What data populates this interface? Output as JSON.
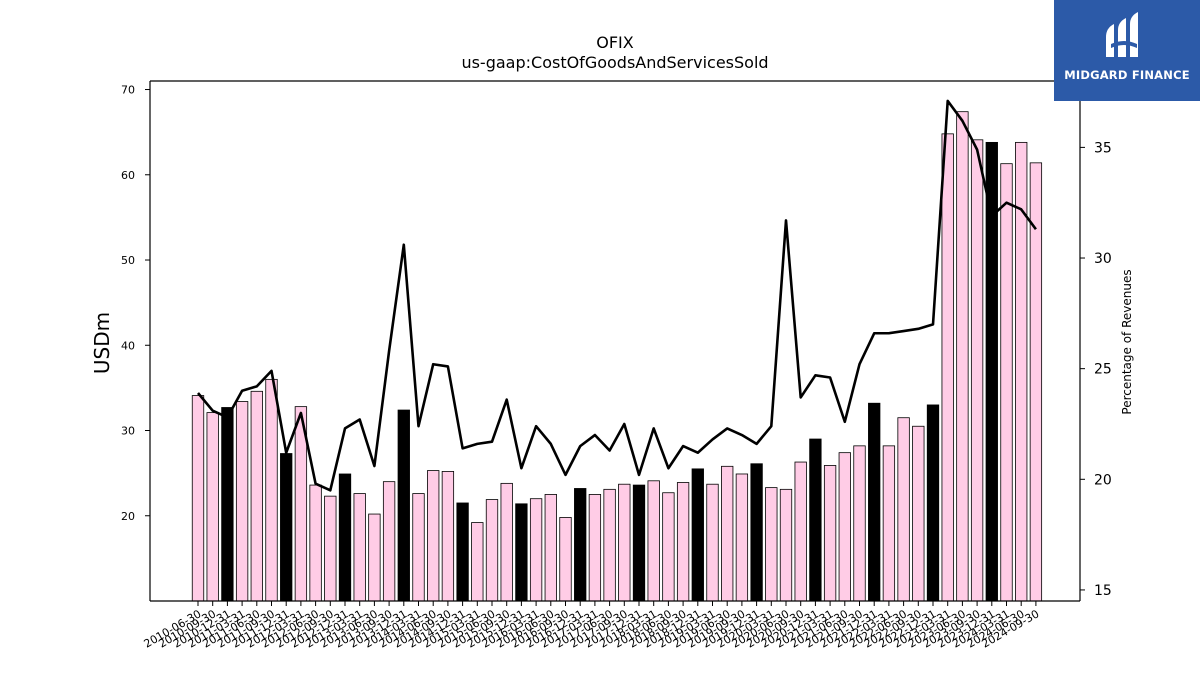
{
  "chart_data": {
    "type": "bar",
    "title": "OFIX",
    "subtitle": "us-gaap:CostOfGoodsAndServicesSold",
    "ylabel": "USDm",
    "ylabel_right": "Percentage of Revenues",
    "ylim": [
      10,
      71
    ],
    "ylim_right": [
      14.5,
      38
    ],
    "yticks": [
      20,
      30,
      40,
      50,
      60,
      70
    ],
    "yticks_right": [
      15,
      20,
      25,
      30,
      35
    ],
    "grid": false,
    "colors": {
      "bar": "#ffcce6",
      "bar_highlight": "#000000",
      "line": "#000000",
      "edge": "#000000"
    },
    "categories": [
      "2010-06-30",
      "2010-09-30",
      "2010-12-31",
      "2011-03-31",
      "2011-06-30",
      "2011-09-30",
      "2011-12-31",
      "2012-03-31",
      "2012-06-30",
      "2012-09-30",
      "2012-12-31",
      "2013-03-31",
      "2013-06-30",
      "2013-09-30",
      "2013-12-31",
      "2014-03-31",
      "2014-06-30",
      "2014-09-30",
      "2014-12-31",
      "2015-03-31",
      "2015-06-30",
      "2015-09-30",
      "2015-12-31",
      "2016-03-31",
      "2016-06-30",
      "2016-09-30",
      "2016-12-31",
      "2017-03-31",
      "2017-06-30",
      "2017-09-30",
      "2017-12-31",
      "2018-03-31",
      "2018-06-30",
      "2018-09-30",
      "2018-12-31",
      "2019-03-31",
      "2019-06-30",
      "2019-09-30",
      "2019-12-31",
      "2020-03-31",
      "2020-06-30",
      "2020-09-30",
      "2020-12-31",
      "2021-03-31",
      "2021-06-30",
      "2021-09-30",
      "2021-12-31",
      "2022-03-31",
      "2022-06-30",
      "2022-09-30",
      "2022-12-31",
      "2023-03-31",
      "2023-06-30",
      "2023-09-30",
      "2023-12-31",
      "2024-03-31",
      "2024-06-30",
      "2024-09-30"
    ],
    "series": [
      {
        "type": "bar",
        "axis": "left",
        "values": [
          34.1,
          32.1,
          32.7,
          33.4,
          34.6,
          36.0,
          27.3,
          32.8,
          23.6,
          22.3,
          24.9,
          22.6,
          20.2,
          24.0,
          32.4,
          22.6,
          25.3,
          25.2,
          21.5,
          19.2,
          21.9,
          23.8,
          21.4,
          22.0,
          22.5,
          19.8,
          23.2,
          22.5,
          23.1,
          23.7,
          23.6,
          24.1,
          22.7,
          23.9,
          25.5,
          23.7,
          25.8,
          24.9,
          26.1,
          23.3,
          23.1,
          26.3,
          29.0,
          25.9,
          27.4,
          28.2,
          33.2,
          28.2,
          31.5,
          30.5,
          33.0,
          64.8,
          67.4,
          64.1,
          63.8,
          61.3,
          63.8,
          61.4
        ],
        "highlight": [
          false,
          false,
          true,
          false,
          false,
          false,
          true,
          false,
          false,
          false,
          true,
          false,
          false,
          false,
          true,
          false,
          false,
          false,
          true,
          false,
          false,
          false,
          true,
          false,
          false,
          false,
          true,
          false,
          false,
          false,
          true,
          false,
          false,
          false,
          true,
          false,
          false,
          false,
          true,
          false,
          false,
          false,
          true,
          false,
          false,
          false,
          true,
          false,
          false,
          false,
          true,
          false,
          false,
          false,
          true,
          false,
          false,
          false
        ]
      },
      {
        "type": "line",
        "axis": "right",
        "values": [
          23.9,
          23.1,
          22.8,
          24.0,
          24.2,
          24.9,
          21.2,
          23.0,
          19.8,
          19.5,
          22.3,
          22.7,
          20.6,
          25.8,
          30.6,
          22.4,
          25.2,
          25.1,
          21.4,
          21.6,
          21.7,
          23.6,
          20.5,
          22.4,
          21.6,
          20.2,
          21.5,
          22.0,
          21.3,
          22.5,
          20.2,
          22.3,
          20.5,
          21.5,
          21.2,
          21.8,
          22.3,
          22.0,
          21.6,
          22.4,
          31.7,
          23.7,
          24.7,
          24.6,
          22.6,
          25.2,
          26.6,
          26.6,
          26.7,
          26.8,
          27.0,
          37.1,
          36.2,
          34.9,
          31.9,
          32.5,
          32.2,
          31.3
        ]
      }
    ]
  },
  "logo": {
    "text": "MIDGARD FINANCE"
  }
}
